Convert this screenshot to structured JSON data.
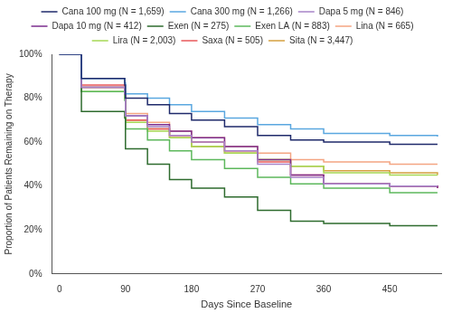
{
  "chart_data": {
    "type": "line",
    "x_label": "Days Since Baseline",
    "y_label": "Proportion of Patients Remaining on Therapy",
    "x": [
      0,
      30,
      89,
      90,
      120,
      150,
      180,
      225,
      270,
      315,
      360,
      450,
      515
    ],
    "series": [
      {
        "name": "Cana 100 mg (N = 1,659)",
        "color": "#1f2a6b",
        "values": [
          100,
          89,
          86,
          80,
          77,
          73,
          70,
          67,
          63,
          61,
          60,
          59,
          59
        ]
      },
      {
        "name": "Cana 300 mg (N = 1,266)",
        "color": "#5aa7e0",
        "values": [
          100,
          89,
          87,
          82,
          80,
          77,
          74,
          71,
          68,
          66,
          64,
          63,
          62.5
        ]
      },
      {
        "name": "Dapa 5 mg (N = 846)",
        "color": "#a784c9",
        "values": [
          100,
          85,
          82,
          72,
          67,
          63,
          60,
          56,
          50,
          44,
          41,
          40,
          40
        ]
      },
      {
        "name": "Dapa 10 mg (N = 412)",
        "color": "#7b2d8e",
        "values": [
          100,
          85,
          82,
          72,
          68,
          65,
          62,
          58,
          52,
          45,
          41,
          40,
          39
        ]
      },
      {
        "name": "Exen (N = 275)",
        "color": "#2e6b2e",
        "values": [
          100,
          74,
          71,
          57,
          50,
          43,
          39,
          35,
          29,
          24,
          23,
          22,
          22
        ]
      },
      {
        "name": "Exen LA (N = 883)",
        "color": "#5db85c",
        "values": [
          100,
          83,
          79,
          66,
          61,
          56,
          52,
          48,
          44,
          41,
          39,
          37,
          37
        ]
      },
      {
        "name": "Lina (N = 665)",
        "color": "#f4a582",
        "values": [
          100,
          85,
          82,
          73,
          69,
          65,
          62,
          58,
          55,
          52,
          51,
          50,
          50
        ]
      },
      {
        "name": "Lira (N = 2,003)",
        "color": "#a6d854",
        "values": [
          100,
          83,
          80,
          69,
          65,
          62,
          58,
          55,
          52,
          49,
          46,
          45,
          45
        ]
      },
      {
        "name": "Saxa (N = 505)",
        "color": "#e8585a",
        "values": [
          100,
          86,
          83,
          70,
          66,
          63,
          60,
          56,
          51,
          45,
          41,
          40,
          39
        ]
      },
      {
        "name": "Sita (N = 3,447)",
        "color": "#d4a040",
        "values": [
          100,
          85,
          80,
          70,
          66,
          62,
          58,
          55,
          52,
          49,
          47,
          46,
          45
        ]
      }
    ],
    "xlim": [
      -10,
      520
    ],
    "xticks": [
      0,
      90,
      180,
      270,
      360,
      450
    ],
    "ylim": [
      0,
      100
    ],
    "yticks": [
      {
        "value": 0,
        "label": "0%"
      },
      {
        "value": 20,
        "label": "20%"
      },
      {
        "value": 40,
        "label": "40%"
      },
      {
        "value": 60,
        "label": "60%"
      },
      {
        "value": 80,
        "label": "80%"
      },
      {
        "value": 100,
        "label": "100%"
      }
    ],
    "grid": false,
    "legend": "top",
    "line_style": "step"
  }
}
